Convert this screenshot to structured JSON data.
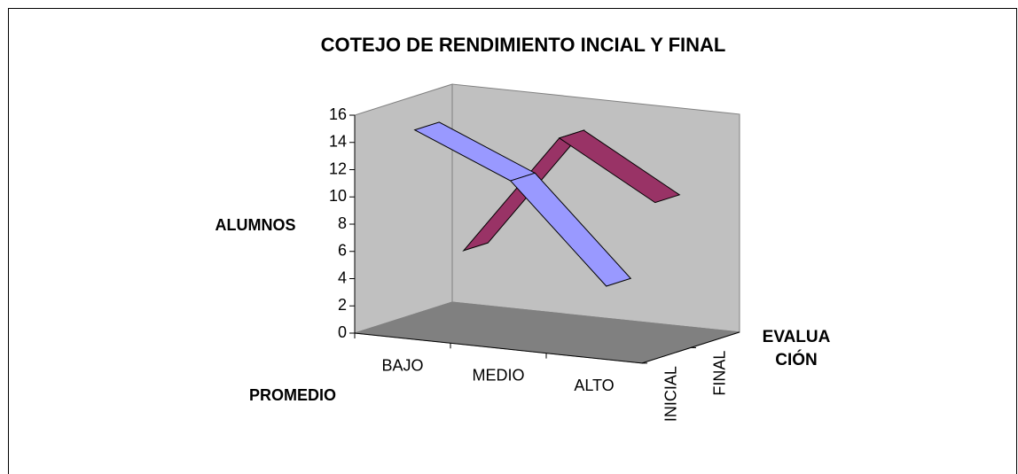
{
  "chart_data": {
    "type": "line3d",
    "title": "COTEJO DE RENDIMIENTO INCIAL Y FINAL",
    "y_label": "ALUMNOS",
    "x_label": "PROMEDIO",
    "z_label": "EVALUA CIÓN",
    "categories": [
      "BAJO",
      "MEDIO",
      "ALTO"
    ],
    "series": [
      {
        "name": "INICIAL",
        "color": "#9999ff",
        "values": [
          15,
          12,
          5
        ]
      },
      {
        "name": "FINAL",
        "color": "#993366",
        "values": [
          5,
          14,
          10
        ]
      }
    ],
    "ylim": [
      0,
      16
    ],
    "yticks": [
      0,
      2,
      4,
      6,
      8,
      10,
      12,
      14,
      16
    ],
    "grid": false
  }
}
